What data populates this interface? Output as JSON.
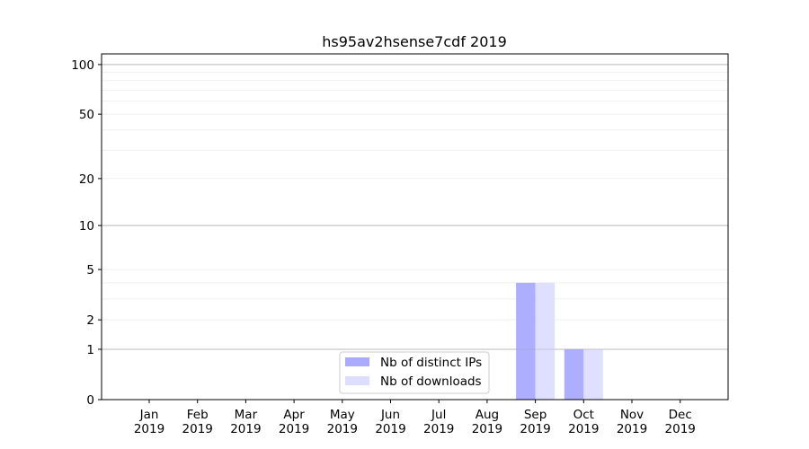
{
  "chart_data": {
    "type": "bar",
    "title": "hs95av2hsense7cdf 2019",
    "xlabel": "",
    "ylabel": "",
    "yscale": "log10(1+y)",
    "ylim": [
      0,
      116
    ],
    "yticks": [
      0,
      1,
      2,
      5,
      10,
      20,
      50,
      100
    ],
    "yminor": [
      3,
      4,
      30,
      40,
      60,
      70,
      80,
      90
    ],
    "grid": true,
    "legend": "bottom-center",
    "categories": [
      [
        "Jan",
        "2019"
      ],
      [
        "Feb",
        "2019"
      ],
      [
        "Mar",
        "2019"
      ],
      [
        "Apr",
        "2019"
      ],
      [
        "May",
        "2019"
      ],
      [
        "Jun",
        "2019"
      ],
      [
        "Jul",
        "2019"
      ],
      [
        "Aug",
        "2019"
      ],
      [
        "Sep",
        "2019"
      ],
      [
        "Oct",
        "2019"
      ],
      [
        "Nov",
        "2019"
      ],
      [
        "Dec",
        "2019"
      ]
    ],
    "series": [
      {
        "name": "Nb of distinct IPs",
        "color": "#aaaaff",
        "values": [
          0,
          0,
          0,
          0,
          0,
          0,
          0,
          0,
          4,
          1,
          0,
          0
        ]
      },
      {
        "name": "Nb of downloads",
        "color": "#ddddff",
        "values": [
          0,
          0,
          0,
          0,
          0,
          0,
          0,
          0,
          4,
          1,
          0,
          0
        ]
      }
    ]
  }
}
